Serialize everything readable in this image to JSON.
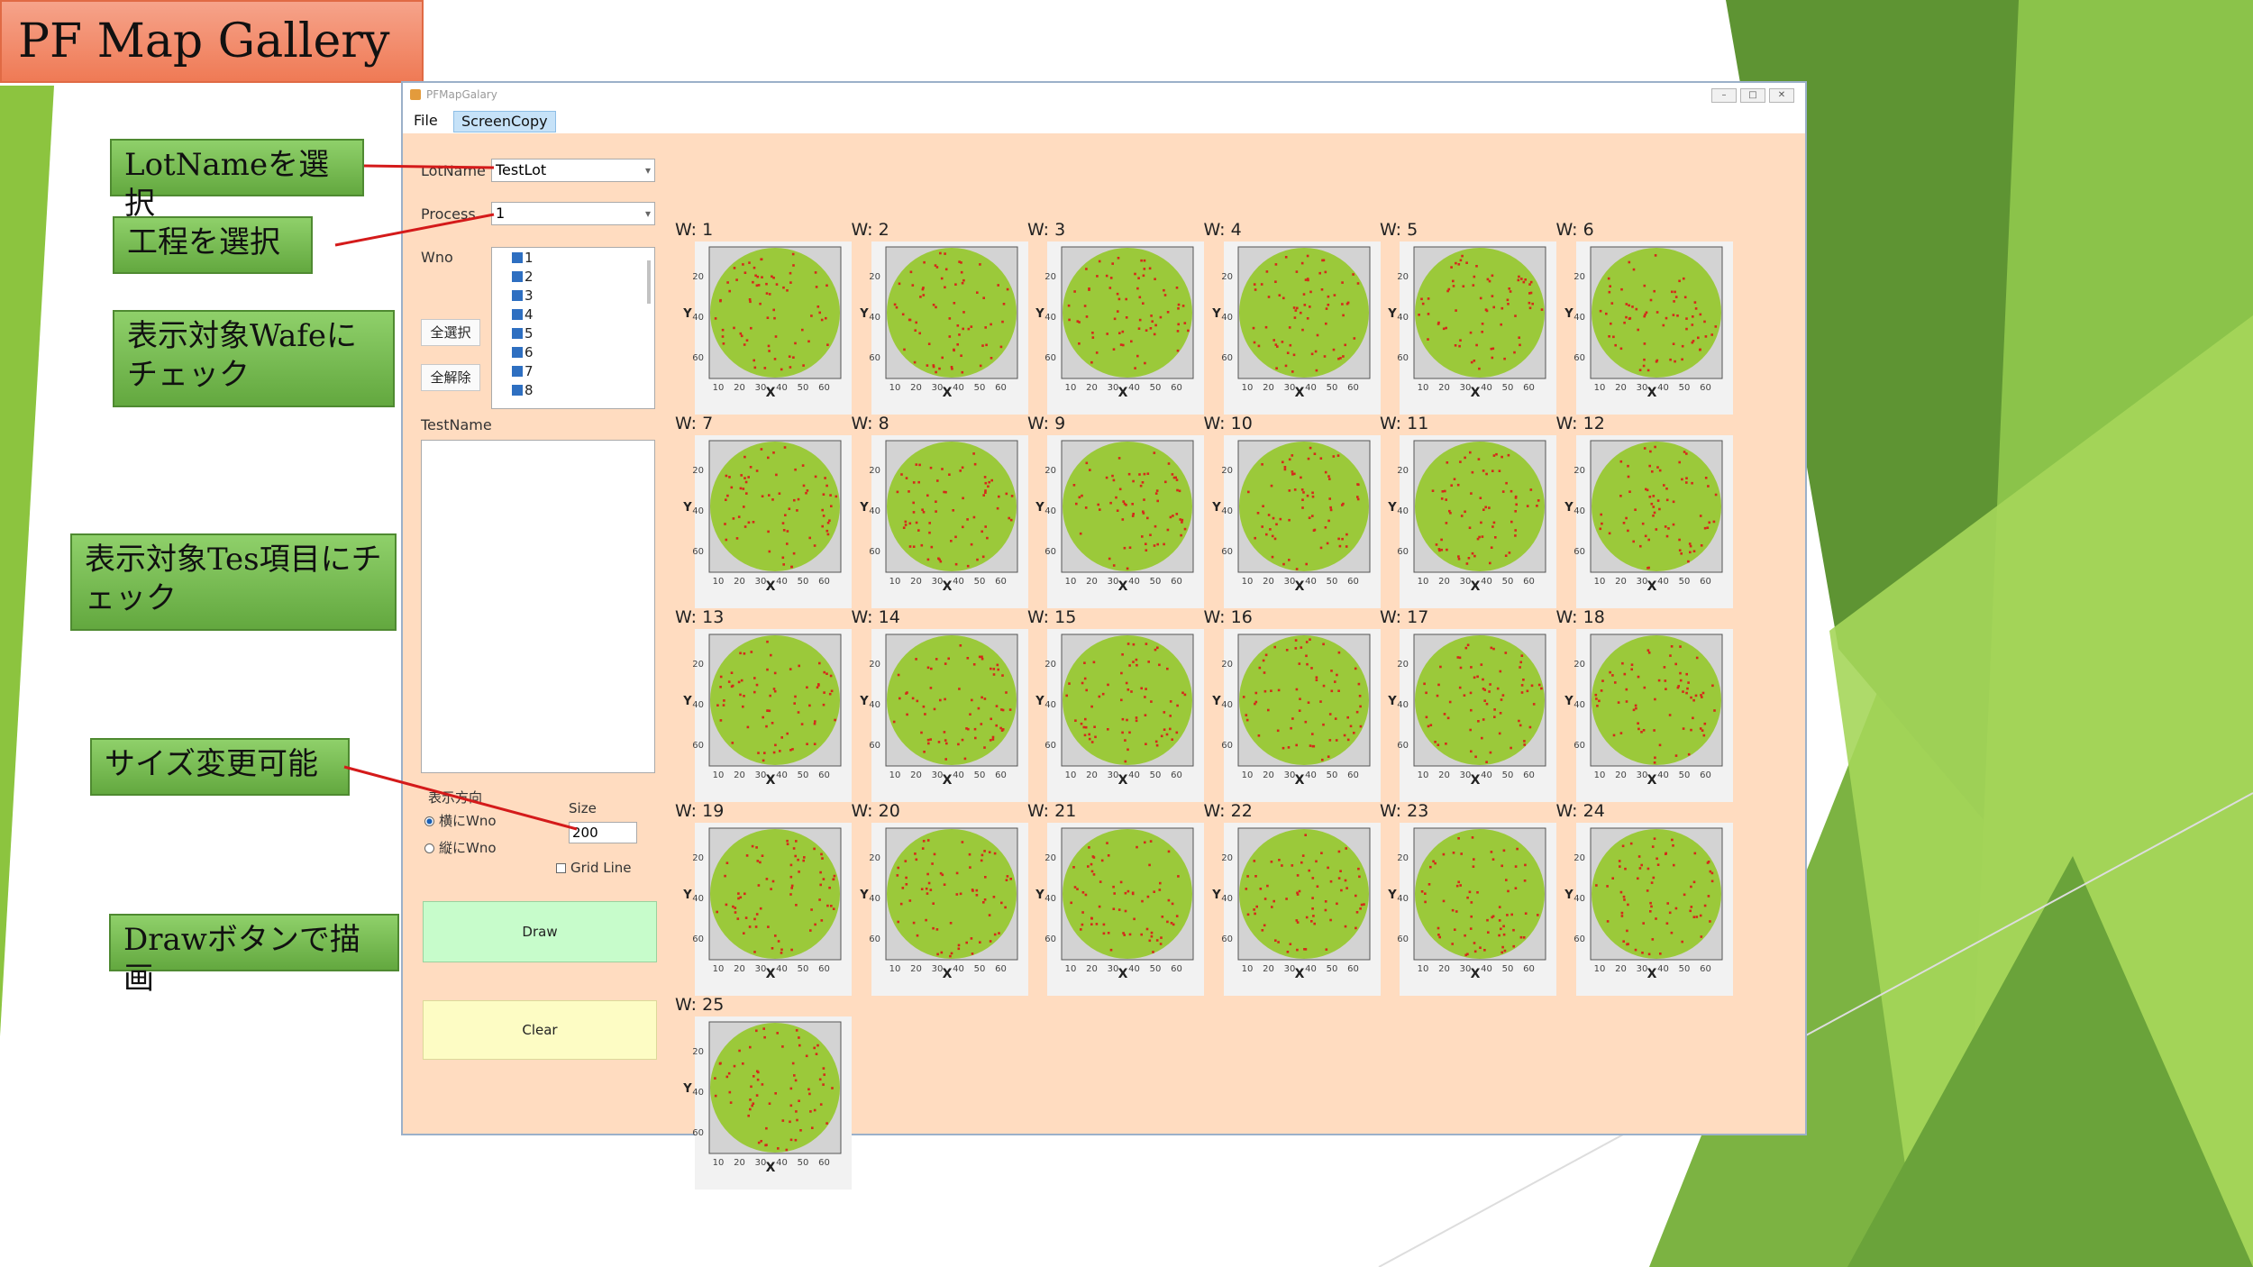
{
  "slide": {
    "title": "PF Map Gallery",
    "callouts": [
      {
        "id": "lotname",
        "text": "LotNameを選択"
      },
      {
        "id": "process",
        "text": "工程を選択"
      },
      {
        "id": "wafer",
        "text": "表示対象Wafeにチェック"
      },
      {
        "id": "test",
        "text": "表示対象Tes項目にチェック"
      },
      {
        "id": "size",
        "text": "サイズ変更可能"
      },
      {
        "id": "draw",
        "text": "Drawボタンで描画"
      }
    ]
  },
  "window": {
    "title": "PFMapGalary",
    "menu": [
      "File",
      "ScreenCopy"
    ],
    "controls": {
      "lotname_label": "LotName",
      "lotname_value": "TestLot",
      "process_label": "Process",
      "process_value": "1",
      "wno_label": "Wno",
      "wno_items": [
        "1",
        "2",
        "3",
        "4",
        "5",
        "6",
        "7",
        "8"
      ],
      "select_all": "全選択",
      "deselect_all": "全解除",
      "testname_label": "TestName",
      "direction_label": "表示方向",
      "radio_horizontal": "横にWno",
      "radio_vertical": "縦にWno",
      "size_label": "Size",
      "size_value": "200",
      "gridline_label": "Grid Line",
      "draw_button": "Draw",
      "clear_button": "Clear"
    }
  },
  "gallery": {
    "tile_labels": [
      "W: 1",
      "W: 2",
      "W: 3",
      "W: 4",
      "W: 5",
      "W: 6",
      "W: 7",
      "W: 8",
      "W: 9",
      "W: 10",
      "W: 11",
      "W: 12",
      "W: 13",
      "W: 14",
      "W: 15",
      "W: 16",
      "W: 17",
      "W: 18",
      "W: 19",
      "W: 20",
      "W: 21",
      "W: 22",
      "W: 23",
      "W: 24",
      "W: 25"
    ],
    "x_ticks": [
      "10",
      "20",
      "30",
      "40",
      "50",
      "60"
    ],
    "y_ticks": [
      "20",
      "40",
      "60"
    ],
    "x_axis": "X",
    "y_axis": "Y",
    "colors": {
      "wafer": "#9bc93a",
      "defect": "#d42a1a",
      "plot_bg": "#d3d3d3",
      "tile_bg": "#f2f2f2"
    }
  }
}
